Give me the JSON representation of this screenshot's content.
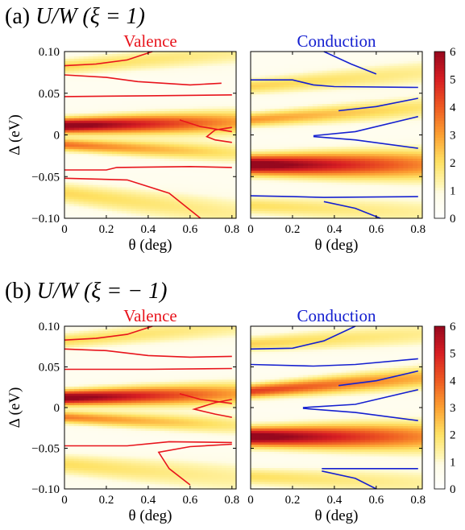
{
  "figure": {
    "panels": [
      {
        "heading": "(a) U/W (ξ = 1)",
        "heading_parts": {
          "prefix": "(a) ",
          "var": "U/W",
          "cond": " (ξ = 1)"
        }
      },
      {
        "heading": "(b) U/W (ξ = − 1)",
        "heading_parts": {
          "prefix": "(b) ",
          "var": "U/W",
          "cond": " (ξ = − 1)"
        }
      }
    ]
  },
  "chart_data": [
    {
      "type": "heatmap",
      "panel": "(a)",
      "title": "Valence",
      "title_color": "#e8141c",
      "xlabel": "θ (deg)",
      "ylabel": "Δ (eV)",
      "xlim": [
        0,
        0.82
      ],
      "ylim": [
        -0.1,
        0.1
      ],
      "xticks": [
        "0",
        "0.2",
        "0.4",
        "0.6",
        "0.8"
      ],
      "yticks": [
        "0.10",
        "0.05",
        "0",
        "−0.05",
        "−0.10"
      ],
      "contour_color": "#e8141c",
      "bands": [
        {
          "d0": 0.011,
          "slope": 0.005,
          "width": 0.0085,
          "peak": 6.2,
          "fade": 0.6
        },
        {
          "d0": -0.012,
          "slope": -0.012,
          "width": 0.007,
          "peak": 3.2,
          "fade": 0.6
        },
        {
          "d0": 0.082,
          "slope": 0.02,
          "width": 0.009,
          "peak": 1.6,
          "fade": 0.4
        },
        {
          "d0": -0.07,
          "slope": -0.03,
          "width": 0.012,
          "peak": 1.6,
          "fade": 0.4
        }
      ],
      "contours": [
        [
          [
            0.0,
            0.083
          ],
          [
            0.15,
            0.085
          ],
          [
            0.3,
            0.09
          ],
          [
            0.42,
            0.1
          ]
        ],
        [
          [
            0.0,
            0.072
          ],
          [
            0.2,
            0.069
          ],
          [
            0.35,
            0.064
          ],
          [
            0.6,
            0.06
          ],
          [
            0.75,
            0.062
          ]
        ],
        [
          [
            0.0,
            0.046
          ],
          [
            0.4,
            0.047
          ],
          [
            0.8,
            0.048
          ]
        ],
        [
          [
            0.0,
            -0.042
          ],
          [
            0.2,
            -0.042
          ],
          [
            0.25,
            -0.039
          ],
          [
            0.6,
            -0.038
          ],
          [
            0.8,
            -0.039
          ]
        ],
        [
          [
            0.55,
            0.018
          ],
          [
            0.65,
            0.01
          ],
          [
            0.8,
            0.004
          ]
        ],
        [
          [
            0.8,
            -0.009
          ],
          [
            0.72,
            -0.006
          ],
          [
            0.68,
            -0.002
          ],
          [
            0.72,
            0.006
          ],
          [
            0.8,
            0.009
          ]
        ],
        [
          [
            0.0,
            -0.052
          ],
          [
            0.3,
            -0.054
          ],
          [
            0.5,
            -0.07
          ],
          [
            0.65,
            -0.1
          ]
        ]
      ],
      "colorbar": {
        "ticks": [
          "6",
          "5",
          "4",
          "3",
          "2",
          "1",
          "0"
        ],
        "range": [
          0,
          6
        ]
      }
    },
    {
      "type": "heatmap",
      "panel": "(a)",
      "title": "Conduction",
      "title_color": "#1520d0",
      "xlabel": "θ (deg)",
      "ylabel": "",
      "xlim": [
        0,
        0.82
      ],
      "ylim": [
        -0.1,
        0.1
      ],
      "xticks": [
        "0",
        "0.2",
        "0.4",
        "0.6",
        "0.8"
      ],
      "contour_color": "#1520d0",
      "bands": [
        {
          "d0": -0.036,
          "slope": 0.0,
          "width": 0.011,
          "peak": 6.3,
          "fade": 0.55
        },
        {
          "d0": 0.018,
          "slope": 0.018,
          "width": 0.008,
          "peak": 2.6,
          "fade": 0.5
        },
        {
          "d0": 0.058,
          "slope": 0.02,
          "width": 0.009,
          "peak": 1.7,
          "fade": 0.4
        },
        {
          "d0": -0.085,
          "slope": -0.01,
          "width": 0.01,
          "peak": 1.5,
          "fade": 0.4
        }
      ],
      "contours": [
        [
          [
            0.35,
            0.1
          ],
          [
            0.48,
            0.085
          ],
          [
            0.6,
            0.073
          ]
        ],
        [
          [
            0.0,
            0.066
          ],
          [
            0.2,
            0.066
          ],
          [
            0.3,
            0.06
          ],
          [
            0.4,
            0.058
          ],
          [
            0.8,
            0.057
          ]
        ],
        [
          [
            0.42,
            0.029
          ],
          [
            0.6,
            0.034
          ],
          [
            0.8,
            0.044
          ]
        ],
        [
          [
            0.3,
            -0.001
          ],
          [
            0.5,
            0.004
          ],
          [
            0.8,
            0.022
          ]
        ],
        [
          [
            0.3,
            -0.002
          ],
          [
            0.5,
            -0.006
          ],
          [
            0.8,
            -0.016
          ]
        ],
        [
          [
            0.0,
            -0.073
          ],
          [
            0.2,
            -0.074
          ],
          [
            0.35,
            -0.075
          ],
          [
            0.8,
            -0.074
          ]
        ],
        [
          [
            0.35,
            -0.08
          ],
          [
            0.5,
            -0.088
          ],
          [
            0.62,
            -0.1
          ]
        ]
      ],
      "colorbar": {
        "ticks": [
          "6",
          "5",
          "4",
          "3",
          "2",
          "1",
          "0"
        ],
        "range": [
          0,
          6
        ]
      }
    },
    {
      "type": "heatmap",
      "panel": "(b)",
      "title": "Valence",
      "title_color": "#e8141c",
      "xlabel": "θ (deg)",
      "ylabel": "Δ (eV)",
      "xlim": [
        0,
        0.82
      ],
      "ylim": [
        -0.1,
        0.1
      ],
      "xticks": [
        "0",
        "0.2",
        "0.4",
        "0.6",
        "0.8"
      ],
      "yticks": [
        "0.10",
        "0.05",
        "0",
        "−0.05",
        "−0.10"
      ],
      "contour_color": "#e8141c",
      "bands": [
        {
          "d0": 0.012,
          "slope": 0.006,
          "width": 0.0085,
          "peak": 6.1,
          "fade": 0.6
        },
        {
          "d0": -0.012,
          "slope": -0.012,
          "width": 0.007,
          "peak": 3.0,
          "fade": 0.6
        },
        {
          "d0": 0.082,
          "slope": 0.022,
          "width": 0.009,
          "peak": 1.6,
          "fade": 0.4
        },
        {
          "d0": -0.07,
          "slope": -0.02,
          "width": 0.012,
          "peak": 1.5,
          "fade": 0.4
        }
      ],
      "contours": [
        [
          [
            0.0,
            0.083
          ],
          [
            0.15,
            0.085
          ],
          [
            0.3,
            0.09
          ],
          [
            0.42,
            0.1
          ]
        ],
        [
          [
            0.0,
            0.072
          ],
          [
            0.2,
            0.07
          ],
          [
            0.4,
            0.064
          ],
          [
            0.6,
            0.062
          ],
          [
            0.8,
            0.063
          ]
        ],
        [
          [
            0.0,
            0.047
          ],
          [
            0.4,
            0.047
          ],
          [
            0.8,
            0.048
          ]
        ],
        [
          [
            0.0,
            -0.047
          ],
          [
            0.3,
            -0.047
          ],
          [
            0.5,
            -0.042
          ],
          [
            0.8,
            -0.043
          ]
        ],
        [
          [
            0.55,
            0.017
          ],
          [
            0.65,
            0.01
          ],
          [
            0.8,
            0.005
          ]
        ],
        [
          [
            0.8,
            -0.012
          ],
          [
            0.72,
            -0.008
          ],
          [
            0.62,
            -0.002
          ],
          [
            0.72,
            0.006
          ],
          [
            0.8,
            0.01
          ]
        ],
        [
          [
            0.8,
            -0.045
          ],
          [
            0.6,
            -0.048
          ],
          [
            0.45,
            -0.055
          ],
          [
            0.5,
            -0.075
          ],
          [
            0.6,
            -0.095
          ]
        ]
      ],
      "colorbar": {
        "ticks": [
          "6",
          "5",
          "4",
          "3",
          "2",
          "1",
          "0"
        ],
        "range": [
          0,
          6
        ]
      }
    },
    {
      "type": "heatmap",
      "panel": "(b)",
      "title": "Conduction",
      "title_color": "#1520d0",
      "xlabel": "θ (deg)",
      "ylabel": "",
      "xlim": [
        0,
        0.82
      ],
      "ylim": [
        -0.1,
        0.1
      ],
      "xticks": [
        "0",
        "0.2",
        "0.4",
        "0.6",
        "0.8"
      ],
      "contour_color": "#1520d0",
      "bands": [
        {
          "d0": -0.036,
          "slope": 0.0,
          "width": 0.011,
          "peak": 6.2,
          "fade": 0.55
        },
        {
          "d0": 0.02,
          "slope": 0.02,
          "width": 0.008,
          "peak": 4.0,
          "fade": 0.45
        },
        {
          "d0": 0.078,
          "slope": 0.015,
          "width": 0.009,
          "peak": 1.7,
          "fade": 0.4
        },
        {
          "d0": -0.085,
          "slope": -0.01,
          "width": 0.01,
          "peak": 1.5,
          "fade": 0.4
        }
      ],
      "contours": [
        [
          [
            0.0,
            0.072
          ],
          [
            0.2,
            0.073
          ],
          [
            0.35,
            0.082
          ],
          [
            0.5,
            0.1
          ]
        ],
        [
          [
            0.0,
            0.053
          ],
          [
            0.3,
            0.051
          ],
          [
            0.5,
            0.053
          ],
          [
            0.8,
            0.06
          ]
        ],
        [
          [
            0.42,
            0.027
          ],
          [
            0.6,
            0.033
          ],
          [
            0.8,
            0.045
          ]
        ],
        [
          [
            0.25,
            0.0
          ],
          [
            0.5,
            0.004
          ],
          [
            0.8,
            0.022
          ]
        ],
        [
          [
            0.25,
            -0.001
          ],
          [
            0.5,
            -0.006
          ],
          [
            0.8,
            -0.016
          ]
        ],
        [
          [
            0.34,
            -0.075
          ],
          [
            0.55,
            -0.075
          ],
          [
            0.8,
            -0.075
          ]
        ],
        [
          [
            0.34,
            -0.078
          ],
          [
            0.5,
            -0.087
          ],
          [
            0.6,
            -0.1
          ]
        ]
      ],
      "colorbar": {
        "ticks": [
          "6",
          "5",
          "4",
          "3",
          "2",
          "1",
          "0"
        ],
        "range": [
          0,
          6
        ]
      }
    }
  ]
}
